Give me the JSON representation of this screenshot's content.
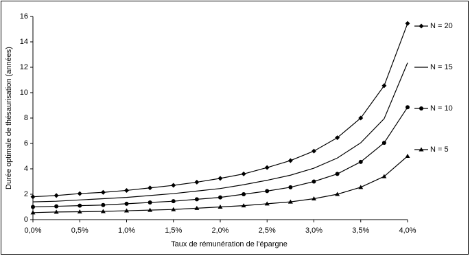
{
  "chart_data": {
    "type": "line",
    "xlabel": "Taux de rémunération de l'épargne",
    "ylabel": "Durée optimale de thésaurisation (années)",
    "x": [
      0,
      0.25,
      0.5,
      0.75,
      1.0,
      1.25,
      1.5,
      1.75,
      2.0,
      2.25,
      2.5,
      2.75,
      3.0,
      3.25,
      3.5,
      3.75,
      4.0
    ],
    "xlim": [
      0,
      4.0
    ],
    "xticks": [
      {
        "value": 0,
        "label": "0,0%"
      },
      {
        "value": 0.5,
        "label": "0,5%"
      },
      {
        "value": 1.0,
        "label": "1,0%"
      },
      {
        "value": 1.5,
        "label": "1,5%"
      },
      {
        "value": 2.0,
        "label": "2,0%"
      },
      {
        "value": 2.5,
        "label": "2,5%"
      },
      {
        "value": 3.0,
        "label": "3,0%"
      },
      {
        "value": 3.5,
        "label": "3,5%"
      },
      {
        "value": 4.0,
        "label": "4,0%"
      }
    ],
    "ylim": [
      0,
      16
    ],
    "yticks": [
      0,
      2,
      4,
      6,
      8,
      10,
      12,
      14,
      16
    ],
    "grid": false,
    "legend": "right",
    "series": [
      {
        "name": "N = 20",
        "color": "#000000",
        "marker": "diamond",
        "values": [
          1.8,
          1.9,
          2.05,
          2.15,
          2.3,
          2.5,
          2.7,
          2.95,
          3.25,
          3.6,
          4.1,
          4.65,
          5.4,
          6.45,
          8.0,
          10.55,
          15.45
        ]
      },
      {
        "name": "N = 15",
        "color": "#000000",
        "marker": "none",
        "values": [
          1.4,
          1.45,
          1.55,
          1.65,
          1.75,
          1.9,
          2.05,
          2.25,
          2.45,
          2.75,
          3.1,
          3.5,
          4.05,
          4.85,
          6.05,
          7.95,
          12.35
        ]
      },
      {
        "name": "N = 10",
        "color": "#000000",
        "marker": "circle",
        "values": [
          1.0,
          1.05,
          1.1,
          1.15,
          1.25,
          1.35,
          1.45,
          1.6,
          1.75,
          2.0,
          2.25,
          2.55,
          3.0,
          3.6,
          4.55,
          6.05,
          8.85
        ]
      },
      {
        "name": "N = 5",
        "color": "#000000",
        "marker": "triangle",
        "values": [
          0.55,
          0.6,
          0.62,
          0.65,
          0.7,
          0.75,
          0.8,
          0.9,
          1.0,
          1.1,
          1.25,
          1.4,
          1.65,
          2.0,
          2.55,
          3.4,
          5.0
        ]
      }
    ]
  }
}
